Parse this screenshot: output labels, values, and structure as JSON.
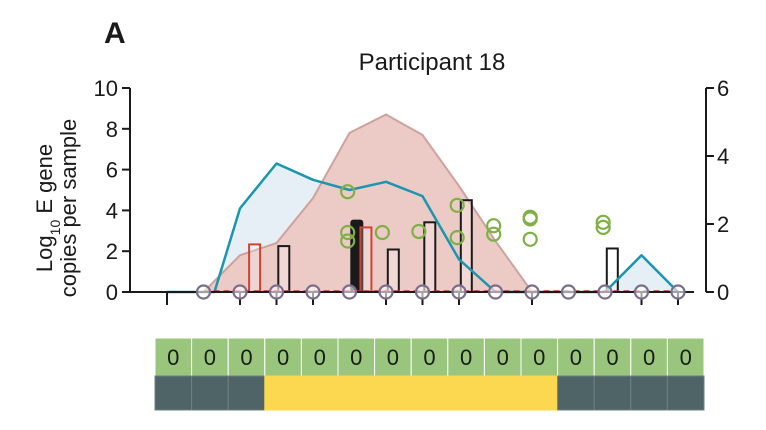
{
  "panel_label": "A",
  "colors": {
    "area_fill": "#eec6bf",
    "area_stroke": "#c9958c",
    "line": "#1b95b0",
    "line_fill": "#e3edf4",
    "circle": "#7fb046",
    "zero_marker": "#7b6e8c",
    "bar_black": "#1a1a1a",
    "bar_red": "#d24234",
    "row_green": "#99c57d",
    "row_yellow": "#fbd850",
    "row_slate": "#4f6466",
    "dashed_baseline": "#b5392c"
  },
  "chart_data": {
    "type": "combo",
    "title": "Participant 18",
    "ylabel_line1": "Log",
    "ylabel_sub": "10",
    "ylabel_line1_rest": " E gene",
    "ylabel_line2": "copies per sample",
    "left_axis": {
      "ylim": [
        0,
        10
      ],
      "ticks": [
        "0",
        "2",
        "4",
        "6",
        "8",
        "10"
      ]
    },
    "right_axis": {
      "ylim": [
        0,
        6
      ],
      "ticks": [
        "0",
        "2",
        "4",
        "6"
      ]
    },
    "xlim": [
      0,
      14
    ],
    "area_series_left": [
      [
        0,
        0
      ],
      [
        1,
        0
      ],
      [
        2,
        1.8
      ],
      [
        3,
        2.4
      ],
      [
        4,
        4.6
      ],
      [
        5,
        7.8
      ],
      [
        6,
        8.7
      ],
      [
        7,
        7.7
      ],
      [
        8,
        5.2
      ],
      [
        9,
        2.5
      ],
      [
        10,
        0
      ],
      [
        11,
        0
      ],
      [
        12,
        0
      ],
      [
        13,
        0
      ],
      [
        14,
        0
      ]
    ],
    "line_series_left": [
      [
        0,
        0
      ],
      [
        1,
        0
      ],
      [
        1.3,
        0
      ],
      [
        2,
        4.1
      ],
      [
        3,
        6.3
      ],
      [
        4,
        5.5
      ],
      [
        5,
        5.0
      ],
      [
        6,
        5.4
      ],
      [
        7,
        4.7
      ],
      [
        8,
        1.6
      ],
      [
        9,
        0
      ],
      [
        10,
        0
      ],
      [
        11,
        0
      ],
      [
        12,
        0
      ],
      [
        13,
        1.8
      ],
      [
        14,
        0
      ]
    ],
    "bars_right": [
      {
        "x": 2.4,
        "value": 1.4,
        "style": "red"
      },
      {
        "x": 3.2,
        "value": 1.35,
        "style": "outline"
      },
      {
        "x": 5.2,
        "value": 2.1,
        "style": "black"
      },
      {
        "x": 5.45,
        "value": 1.9,
        "style": "red"
      },
      {
        "x": 6.2,
        "value": 1.25,
        "style": "outline"
      },
      {
        "x": 7.2,
        "value": 2.05,
        "style": "outline"
      },
      {
        "x": 8.2,
        "value": 2.7,
        "style": "outline"
      },
      {
        "x": 12.2,
        "value": 1.28,
        "style": "outline"
      }
    ],
    "circles_right": [
      {
        "x": 4.95,
        "value": 2.95
      },
      {
        "x": 4.95,
        "value": 1.75
      },
      {
        "x": 4.95,
        "value": 1.5
      },
      {
        "x": 5.9,
        "value": 1.75
      },
      {
        "x": 6.9,
        "value": 1.78
      },
      {
        "x": 7.95,
        "value": 2.55
      },
      {
        "x": 7.95,
        "value": 1.6
      },
      {
        "x": 8.95,
        "value": 1.95
      },
      {
        "x": 8.95,
        "value": 1.7
      },
      {
        "x": 9.95,
        "value": 2.2
      },
      {
        "x": 9.95,
        "value": 2.15
      },
      {
        "x": 9.95,
        "value": 1.55
      },
      {
        "x": 11.95,
        "value": 2.05
      },
      {
        "x": 11.95,
        "value": 1.9
      }
    ],
    "zero_markers_x": [
      1,
      2,
      3,
      4,
      5,
      6,
      7,
      8,
      9,
      10,
      11,
      12,
      13,
      14
    ],
    "x_ticks": [
      0,
      2,
      3,
      4,
      6,
      7,
      8,
      10,
      13,
      14
    ]
  },
  "symptom_rows": {
    "scores": [
      "0",
      "0",
      "0",
      "0",
      "0",
      "0",
      "0",
      "0",
      "0",
      "0",
      "0",
      "0",
      "0",
      "0",
      "0"
    ],
    "status": [
      "slate",
      "slate",
      "slate",
      "yellow",
      "yellow",
      "yellow",
      "yellow",
      "yellow",
      "yellow",
      "yellow",
      "yellow",
      "slate",
      "slate",
      "slate",
      "slate"
    ]
  }
}
